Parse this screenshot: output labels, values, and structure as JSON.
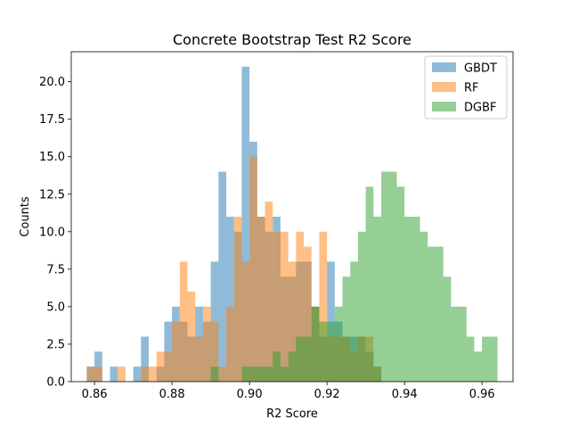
{
  "chart_data": {
    "type": "histogram",
    "title": "Concrete Bootstrap Test R2 Score",
    "xlabel": "R2 Score",
    "ylabel": "Counts",
    "xlim": [
      0.854,
      0.968
    ],
    "ylim": [
      0,
      22
    ],
    "xticks": [
      {
        "value": 0.86,
        "label": "0.86"
      },
      {
        "value": 0.88,
        "label": "0.88"
      },
      {
        "value": 0.9,
        "label": "0.90"
      },
      {
        "value": 0.92,
        "label": "0.92"
      },
      {
        "value": 0.94,
        "label": "0.94"
      },
      {
        "value": 0.96,
        "label": "0.96"
      }
    ],
    "yticks": [
      {
        "value": 0,
        "label": "0.0"
      },
      {
        "value": 2.5,
        "label": "2.5"
      },
      {
        "value": 5,
        "label": "5.0"
      },
      {
        "value": 7.5,
        "label": "7.5"
      },
      {
        "value": 10,
        "label": "10.0"
      },
      {
        "value": 12.5,
        "label": "12.5"
      },
      {
        "value": 15,
        "label": "15.0"
      },
      {
        "value": 17.5,
        "label": "17.5"
      },
      {
        "value": 20,
        "label": "20.0"
      }
    ],
    "grid": false,
    "legend_position": "top-right",
    "series": [
      {
        "name": "GBDT",
        "color": "#1f77b4",
        "opacity": 0.5,
        "bin_start": 0.858,
        "bin_width": 0.002,
        "counts": [
          1,
          2,
          0,
          1,
          0,
          0,
          1,
          3,
          0,
          1,
          4,
          5,
          4,
          3,
          5,
          4,
          8,
          14,
          11,
          10,
          21,
          16,
          11,
          10,
          11,
          7,
          7,
          8,
          8,
          5,
          3,
          8,
          4,
          3,
          3,
          3,
          2,
          1,
          0,
          0,
          0,
          0,
          0,
          0,
          0,
          0,
          0,
          0,
          0,
          0,
          0,
          0,
          0
        ]
      },
      {
        "name": "RF",
        "color": "#ff7f0e",
        "opacity": 0.5,
        "bin_start": 0.858,
        "bin_width": 0.002,
        "counts": [
          1,
          1,
          0,
          0,
          1,
          0,
          0,
          1,
          1,
          2,
          2,
          4,
          8,
          6,
          3,
          5,
          4,
          1,
          5,
          11,
          8,
          15,
          11,
          12,
          10,
          10,
          8,
          10,
          9,
          5,
          10,
          3,
          3,
          3,
          2,
          3,
          3,
          1,
          0,
          0,
          0,
          0,
          0,
          0,
          0,
          0,
          0,
          0,
          0,
          0,
          0,
          0,
          0
        ]
      },
      {
        "name": "DGBF",
        "color": "#2ca02c",
        "opacity": 0.5,
        "bin_start": 0.858,
        "bin_width": 0.002,
        "counts": [
          0,
          0,
          0,
          0,
          0,
          0,
          0,
          0,
          0,
          0,
          0,
          0,
          0,
          0,
          0,
          0,
          1,
          0,
          0,
          0,
          1,
          1,
          1,
          1,
          2,
          1,
          2,
          3,
          3,
          5,
          4,
          4,
          5,
          7,
          8,
          10,
          13,
          11,
          14,
          14,
          13,
          11,
          11,
          10,
          9,
          9,
          7,
          5,
          5,
          3,
          2,
          3,
          3
        ]
      }
    ]
  }
}
